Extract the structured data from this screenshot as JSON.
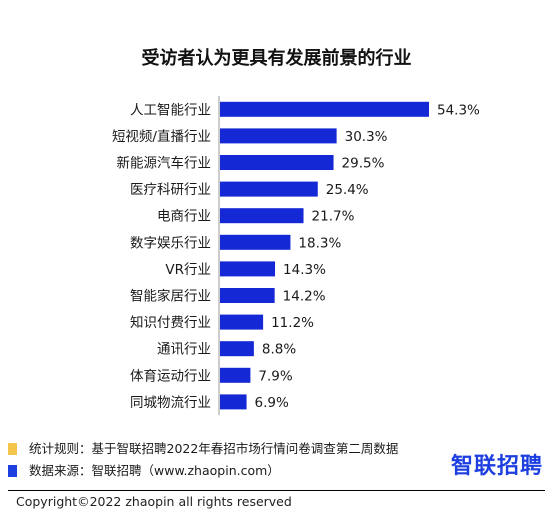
{
  "title": "受访者认为更具有发展前景的行业",
  "colors": {
    "bar": "#1428d6",
    "stat_square": "#f3c64b",
    "source_square": "#1e3fe0",
    "logo": "#1e3fe0"
  },
  "notes": {
    "stat_rule": "统计规则：基于智联招聘2022年春招市场行情问卷调查第二周数据",
    "data_source": "数据来源：智联招聘（www.zhaopin.com）"
  },
  "logo_text": "智联招聘",
  "copyright": "Copyright©2022 zhaopin all rights reserved",
  "chart_data": {
    "type": "bar",
    "orientation": "horizontal",
    "title": "受访者认为更具有发展前景的行业",
    "categories": [
      "人工智能行业",
      "短视频/直播行业",
      "新能源汽车行业",
      "医疗科研行业",
      "电商行业",
      "数字娱乐行业",
      "VR行业",
      "智能家居行业",
      "知识付费行业",
      "通讯行业",
      "体育运动行业",
      "同城物流行业"
    ],
    "values": [
      54.3,
      30.3,
      29.5,
      25.4,
      21.7,
      18.3,
      14.3,
      14.2,
      11.2,
      8.8,
      7.9,
      6.9
    ],
    "value_labels": [
      "54.3%",
      "30.3%",
      "29.5%",
      "25.4%",
      "21.7%",
      "18.3%",
      "14.3%",
      "14.2%",
      "11.2%",
      "8.8%",
      "7.9%",
      "6.9%"
    ],
    "unit": "%",
    "grid": false
  }
}
